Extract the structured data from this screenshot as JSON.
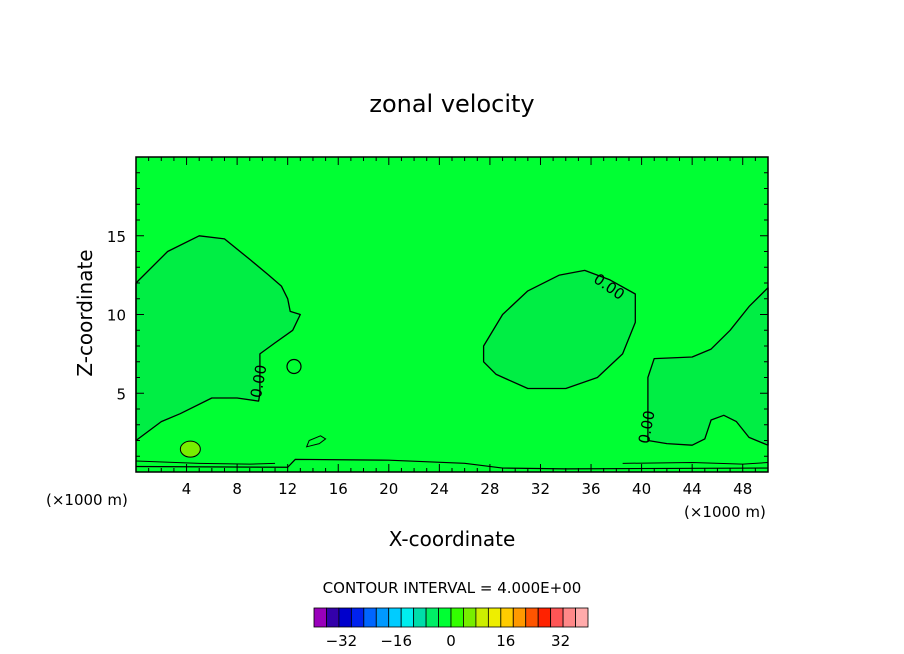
{
  "chart_data": {
    "type": "heatmap",
    "title": "zonal velocity",
    "xlabel": "X-coordinate",
    "ylabel": "Z-coordinate",
    "x_unit_left": "(×1000 m)",
    "x_unit_right": "(×1000 m)",
    "xlim": [
      0,
      50
    ],
    "ylim": [
      0,
      20
    ],
    "x_ticks": [
      4,
      8,
      12,
      16,
      20,
      24,
      28,
      32,
      36,
      40,
      44,
      48
    ],
    "y_ticks": [
      5,
      10,
      15
    ],
    "contour_interval_text": "CONTOUR INTERVAL = 4.000E+00",
    "contour_label": "0.00",
    "background_color": "#00ff33",
    "region_color": "#00ee44",
    "colorbar": {
      "range": [
        -40,
        40
      ],
      "tick_values": [
        -32,
        -16,
        0,
        16,
        32
      ],
      "tick_labels": [
        "−32",
        "−16",
        "0",
        "16",
        "32"
      ],
      "colors": [
        "#9900bb",
        "#3300aa",
        "#0000cc",
        "#0022ee",
        "#0066ff",
        "#0099ff",
        "#00ccff",
        "#00eeee",
        "#00ddaa",
        "#00ee66",
        "#00ff33",
        "#33ff00",
        "#77ee00",
        "#ccee00",
        "#eeee00",
        "#ffcc00",
        "#ff9900",
        "#ff5500",
        "#ff2200",
        "#ff5555",
        "#ff8888",
        "#ffaaaa"
      ]
    },
    "negative_regions": [
      {
        "name": "left",
        "points": [
          [
            0,
            12
          ],
          [
            2.5,
            14
          ],
          [
            5,
            15
          ],
          [
            7,
            14.8
          ],
          [
            9,
            13.5
          ],
          [
            10.5,
            12.5
          ],
          [
            11.5,
            11.8
          ],
          [
            12,
            11
          ],
          [
            12.2,
            10.2
          ],
          [
            13,
            10
          ],
          [
            12.4,
            9
          ],
          [
            11,
            8.2
          ],
          [
            9.8,
            7.5
          ],
          [
            9.8,
            6
          ],
          [
            9.8,
            5
          ],
          [
            9.7,
            4.5
          ],
          [
            8,
            4.7
          ],
          [
            6,
            4.7
          ],
          [
            3.5,
            3.7
          ],
          [
            2,
            3.2
          ],
          [
            0,
            2
          ]
        ]
      },
      {
        "name": "center",
        "points": [
          [
            27.5,
            8
          ],
          [
            29,
            10
          ],
          [
            31,
            11.5
          ],
          [
            33.5,
            12.5
          ],
          [
            35.5,
            12.8
          ],
          [
            37.5,
            12.2
          ],
          [
            39.5,
            11.3
          ],
          [
            39.5,
            9.5
          ],
          [
            38.5,
            7.5
          ],
          [
            36.5,
            6
          ],
          [
            34,
            5.3
          ],
          [
            31,
            5.3
          ],
          [
            28.5,
            6.2
          ],
          [
            27.5,
            7
          ]
        ]
      },
      {
        "name": "right",
        "points": [
          [
            50,
            11.7
          ],
          [
            48.5,
            10.5
          ],
          [
            47,
            9
          ],
          [
            45.5,
            7.8
          ],
          [
            44,
            7.3
          ],
          [
            41,
            7.2
          ],
          [
            40.5,
            6
          ],
          [
            40.5,
            2
          ],
          [
            42,
            1.8
          ],
          [
            44,
            1.7
          ],
          [
            45,
            2.1
          ],
          [
            45.5,
            3.3
          ],
          [
            46.5,
            3.6
          ],
          [
            47.5,
            3.2
          ],
          [
            48.5,
            2.2
          ],
          [
            50,
            1.7
          ]
        ]
      }
    ]
  }
}
